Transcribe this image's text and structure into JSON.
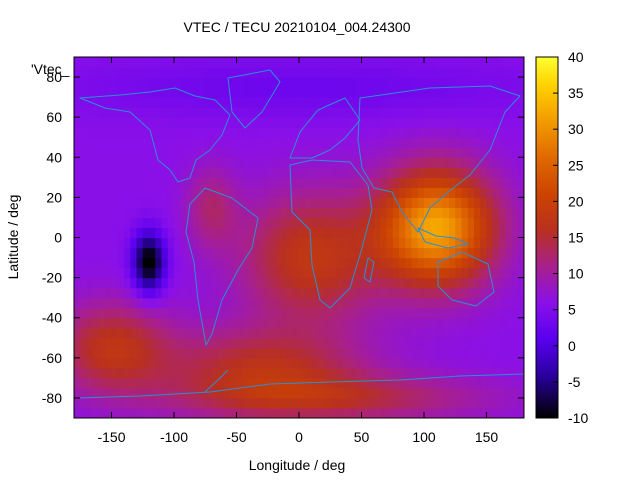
{
  "chart_data": {
    "type": "heatmap",
    "title": "VTEC / TECU 20210104_004.24300",
    "xlabel": "Longitude / deg",
    "ylabel": "Latitude / deg",
    "key_label": "'Vtec_",
    "xlim": [
      -180,
      180
    ],
    "ylim": [
      -90,
      90
    ],
    "xticks": [
      "-150",
      "-100",
      "-50",
      "0",
      "50",
      "100",
      "150"
    ],
    "xtick_values": [
      -150,
      -100,
      -50,
      0,
      50,
      100,
      150
    ],
    "yticks": [
      "-80",
      "-60",
      "-40",
      "-20",
      "0",
      "20",
      "40",
      "60",
      "80"
    ],
    "ytick_values": [
      -80,
      -60,
      -40,
      -20,
      0,
      20,
      40,
      60,
      80
    ],
    "colorbar": {
      "range": [
        -10,
        40
      ],
      "ticks": [
        "40",
        "35",
        "30",
        "25",
        "20",
        "15",
        "10",
        "5",
        "0",
        "-5",
        "-10"
      ],
      "tick_values": [
        40,
        35,
        30,
        25,
        20,
        15,
        10,
        5,
        0,
        -5,
        -10
      ]
    },
    "grid": false,
    "colormap": "black-blue-magenta-red-orange-yellow",
    "features": [
      {
        "name": "minimum",
        "lon": -120,
        "lat": -12,
        "value": -10
      },
      {
        "name": "maximum",
        "lon": 105,
        "lat": 10,
        "value": 36
      }
    ],
    "map_overlay": "coastlines"
  }
}
